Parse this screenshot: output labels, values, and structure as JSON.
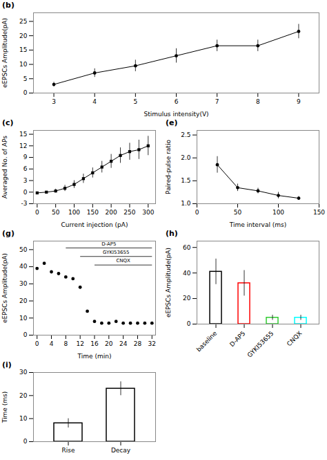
{
  "chart_data": [
    {
      "type": "line",
      "title": "(b)",
      "marker": "circle",
      "color": "black",
      "x": [
        3,
        4,
        5,
        6,
        7,
        8,
        9
      ],
      "values": [
        3.0,
        7.0,
        9.5,
        13.0,
        16.5,
        16.5,
        21.5
      ],
      "errors": [
        0.8,
        1.5,
        2.0,
        2.5,
        2.0,
        2.0,
        2.5
      ],
      "xlabel": "Stimulus intensity(V)",
      "ylabel": "eEPSCs Amplitude(pA)",
      "xlim": [
        2.5,
        9.5
      ],
      "ylim": [
        0,
        28
      ],
      "xticks": [
        3,
        4,
        5,
        6,
        7,
        8,
        9
      ],
      "yticks": [
        0,
        5,
        10,
        15,
        20,
        25
      ]
    },
    {
      "type": "line",
      "title": "(c)",
      "marker": "square",
      "color": "black",
      "x": [
        0,
        25,
        50,
        75,
        100,
        125,
        150,
        175,
        200,
        225,
        250,
        275,
        300
      ],
      "values": [
        -0.2,
        0.0,
        0.3,
        1.0,
        2.0,
        3.5,
        5.0,
        6.5,
        8.0,
        9.5,
        10.5,
        11.0,
        12.0
      ],
      "errors": [
        0.1,
        0.15,
        0.5,
        0.8,
        1.0,
        1.2,
        1.3,
        1.5,
        1.8,
        2.0,
        2.2,
        2.5,
        2.5
      ],
      "xlabel": "Current injection (pA)",
      "ylabel": "Averaged No. of APs",
      "xlim": [
        -10,
        320
      ],
      "ylim": [
        -3,
        16
      ],
      "xticks": [
        0,
        50,
        100,
        150,
        200,
        250,
        300
      ],
      "yticks": [
        -3,
        0,
        3,
        6,
        9,
        12,
        15
      ]
    },
    {
      "type": "line",
      "title": "(e)",
      "marker": "circle",
      "color": "black",
      "x": [
        25,
        50,
        75,
        100,
        125
      ],
      "values": [
        1.85,
        1.35,
        1.28,
        1.18,
        1.12
      ],
      "errors": [
        0.18,
        0.08,
        0.06,
        0.07,
        0.04
      ],
      "xlabel": "Time interval (ms)",
      "ylabel": "Paired-pulse ratio",
      "xlim": [
        0,
        150
      ],
      "ylim": [
        1.0,
        2.6
      ],
      "xticks": [
        0,
        50,
        100,
        150
      ],
      "yticks": [
        {
          "value": 1,
          "label": "1.0"
        },
        1.5,
        {
          "value": 2,
          "label": "2.0"
        },
        2.5
      ]
    },
    {
      "type": "scatter",
      "title": "(g)",
      "marker": "circle",
      "color": "black",
      "x": [
        0,
        2,
        4,
        6,
        8,
        10,
        12,
        14,
        16,
        18,
        20,
        22,
        24,
        26,
        28,
        30,
        32
      ],
      "values": [
        39,
        42,
        37,
        36,
        34,
        33,
        28,
        14,
        8,
        7,
        7,
        8,
        7,
        7,
        7,
        7,
        7
      ],
      "xlabel": "Time (min)",
      "ylabel": "eEPSCs Amplitude(pA)",
      "xlim": [
        -1,
        33
      ],
      "ylim": [
        0,
        55
      ],
      "xticks": [
        0,
        4,
        8,
        12,
        16,
        20,
        24,
        28,
        32
      ],
      "yticks": [
        0,
        10,
        20,
        30,
        40,
        50
      ],
      "annotations": [
        {
          "text": "D-AP5",
          "x": [
            8,
            32
          ],
          "y": 51,
          "text_x": 20,
          "text_y": 52.5
        },
        {
          "text": "GYKI53655",
          "x": [
            12,
            32
          ],
          "y": 46,
          "text_x": 22,
          "text_y": 47.5
        },
        {
          "text": "CNQX",
          "x": [
            16,
            32
          ],
          "y": 41,
          "text_x": 24,
          "text_y": 42.5
        }
      ]
    },
    {
      "type": "bar",
      "title": "(h)",
      "categories": [
        "baseline",
        "D-AP5",
        "GYKI53655",
        "CNQX"
      ],
      "values": [
        41,
        32,
        5,
        5
      ],
      "errors": [
        10,
        10,
        2,
        2
      ],
      "colors": [
        "black",
        "red",
        "limegreen",
        "cyan"
      ],
      "ylabel": "eEPSCs Amplitude(pA)",
      "ylim": [
        0,
        65
      ],
      "yticks": [
        0,
        20,
        40,
        60
      ]
    },
    {
      "type": "bar",
      "title": "(i)",
      "categories": [
        "Rise",
        "Decay"
      ],
      "values": [
        8,
        23
      ],
      "errors": [
        2,
        3
      ],
      "color": "black",
      "ylabel": "Time (ms)",
      "ylim": [
        0,
        30
      ],
      "yticks": [
        0,
        10,
        20,
        30
      ]
    }
  ]
}
